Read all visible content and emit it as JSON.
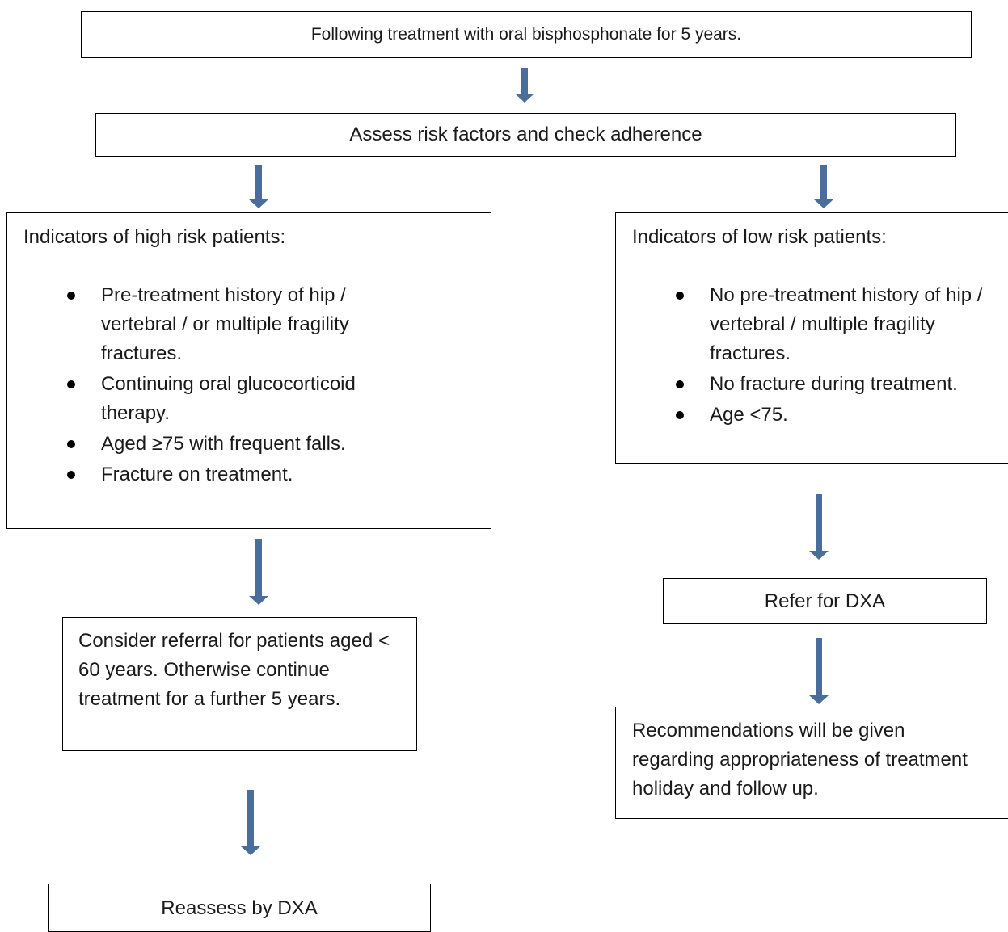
{
  "nodes": {
    "start": "Following treatment with oral bisphosphonate for 5 years.",
    "assess": "Assess risk factors and check adherence",
    "high_risk": {
      "heading": "Indicators of high risk patients:",
      "items": [
        "Pre-treatment history of hip / vertebral / or multiple fragility fractures.",
        "Continuing oral glucocorticoid therapy.",
        "Aged ≥75 with frequent falls.",
        "Fracture on treatment."
      ]
    },
    "low_risk": {
      "heading": "Indicators of low risk patients:",
      "items": [
        "No pre-treatment history of hip / vertebral / multiple fragility fractures.",
        "No fracture during treatment.",
        "Age <75."
      ]
    },
    "consider_referral": "Consider referral for patients aged < 60 years. Otherwise continue treatment for a further 5 years.",
    "reassess": "Reassess by DXA",
    "refer_dxa": "Refer for DXA",
    "recommendations": "Recommendations will be given regarding appropriateness of treatment holiday and follow up."
  },
  "colors": {
    "arrow": "#4a6d9a",
    "border": "#000000"
  }
}
